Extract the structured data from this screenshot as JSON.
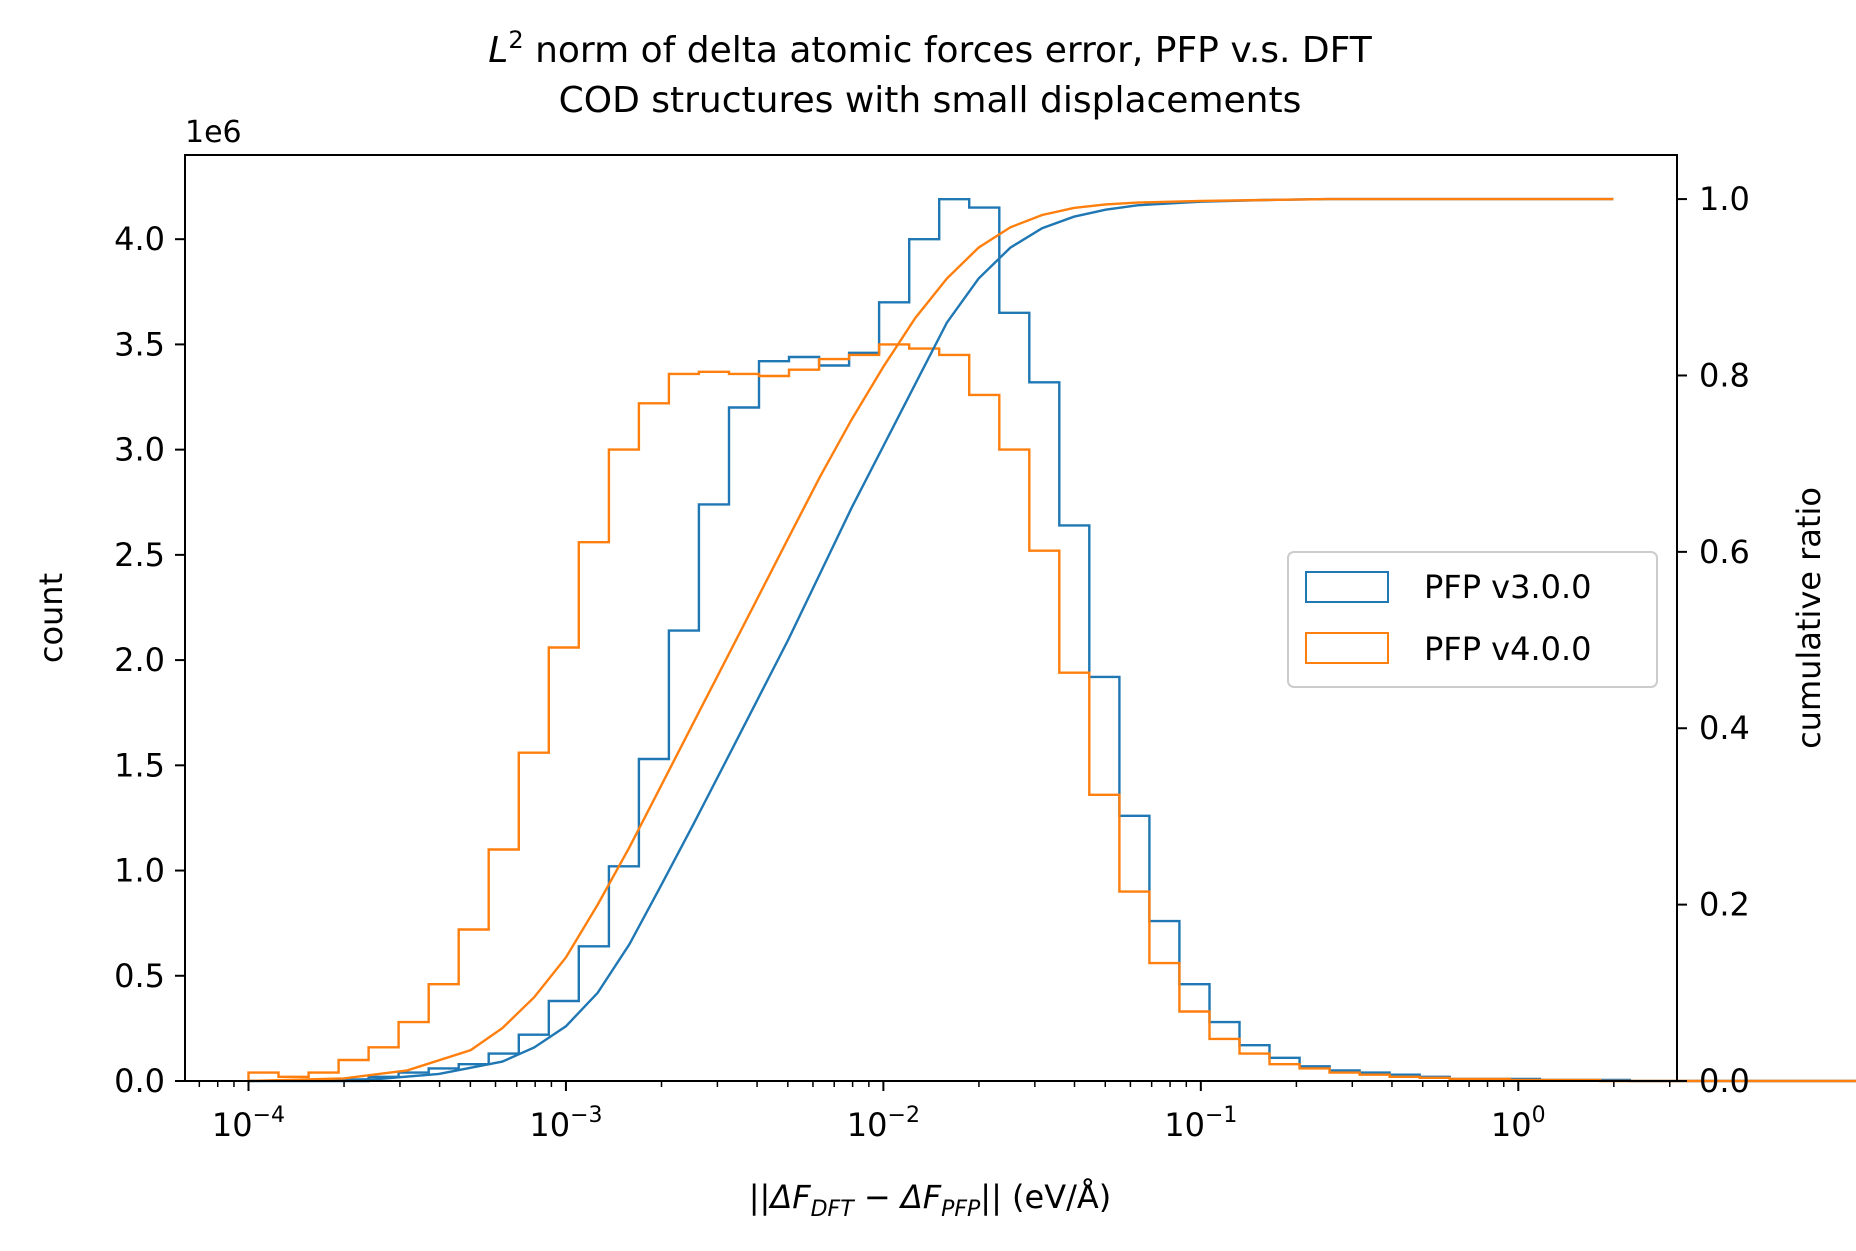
{
  "chart_data": {
    "type": "histogram",
    "title": {
      "line1_prefix": "L",
      "line1_sup": "2",
      "line1_rest": " norm of delta atomic forces error, PFP v.s. DFT",
      "line2": "COD structures with small displacements"
    },
    "xlabel": {
      "open": "||",
      "delta1": "ΔF",
      "sub1": "DFT",
      "minus": " − ",
      "delta2": "ΔF",
      "sub2": "PFP",
      "close": "||",
      "unit": " (eV/Å)"
    },
    "ylabel": "count",
    "y2label": "cumulative ratio",
    "y_scale_label": "1e6",
    "xscale": "log",
    "xlim_exp": [
      -4.2,
      0.5
    ],
    "ylim": [
      0,
      4.4
    ],
    "y2lim": [
      0,
      1.05
    ],
    "x_ticks": [
      {
        "base": "10",
        "exp": "−4",
        "e": -4
      },
      {
        "base": "10",
        "exp": "−3",
        "e": -3
      },
      {
        "base": "10",
        "exp": "−2",
        "e": -2
      },
      {
        "base": "10",
        "exp": "−1",
        "e": -1
      },
      {
        "base": "10",
        "exp": "0",
        "e": 0
      }
    ],
    "y_ticks": [
      "0.0",
      "0.5",
      "1.0",
      "1.5",
      "2.0",
      "2.5",
      "3.0",
      "3.5",
      "4.0"
    ],
    "y2_ticks": [
      "0.0",
      "0.2",
      "0.4",
      "0.6",
      "0.8",
      "1.0"
    ],
    "bin_start_exp": -4,
    "bin_width_exp": 0.0946,
    "series": [
      {
        "name": "PFP v3.0.0",
        "color": "#1f77b4",
        "counts_1e6": [
          0.0,
          0.0,
          0.0,
          0.0,
          0.02,
          0.04,
          0.06,
          0.08,
          0.13,
          0.22,
          0.38,
          0.64,
          1.02,
          1.53,
          2.14,
          2.74,
          3.2,
          3.42,
          3.44,
          3.4,
          3.46,
          3.7,
          4.0,
          4.19,
          4.15,
          3.65,
          3.32,
          2.64,
          1.92,
          1.26,
          0.76,
          0.46,
          0.28,
          0.17,
          0.11,
          0.07,
          0.05,
          0.04,
          0.03,
          0.02,
          0.01,
          0.01,
          0.01,
          0.005,
          0.005,
          0.005,
          0.0,
          0.0,
          0.0,
          0.0,
          0.0,
          0.0,
          0.0,
          0.0,
          0.0
        ],
        "cdf_x_exp": [
          -4.0,
          -3.6,
          -3.4,
          -3.2,
          -3.1,
          -3.0,
          -2.9,
          -2.8,
          -2.7,
          -2.6,
          -2.5,
          -2.4,
          -2.3,
          -2.2,
          -2.1,
          -2.0,
          -1.9,
          -1.8,
          -1.7,
          -1.6,
          -1.5,
          -1.4,
          -1.3,
          -1.2,
          -1.0,
          -0.8,
          -0.6,
          -0.4,
          -0.2,
          0.0,
          0.3
        ],
        "cdf_y": [
          0.0,
          0.002,
          0.008,
          0.022,
          0.038,
          0.062,
          0.1,
          0.155,
          0.222,
          0.29,
          0.36,
          0.43,
          0.5,
          0.575,
          0.65,
          0.72,
          0.79,
          0.86,
          0.91,
          0.945,
          0.967,
          0.98,
          0.988,
          0.993,
          0.997,
          0.999,
          1.0,
          1.0,
          1.0,
          1.0,
          1.0
        ]
      },
      {
        "name": "PFP v4.0.0",
        "color": "#ff7f0e",
        "counts_1e6": [
          0.04,
          0.02,
          0.04,
          0.1,
          0.16,
          0.28,
          0.46,
          0.72,
          1.1,
          1.56,
          2.06,
          2.56,
          3.0,
          3.22,
          3.36,
          3.37,
          3.36,
          3.35,
          3.38,
          3.43,
          3.45,
          3.5,
          3.48,
          3.45,
          3.26,
          3.0,
          2.52,
          1.94,
          1.36,
          0.9,
          0.56,
          0.33,
          0.2,
          0.13,
          0.08,
          0.06,
          0.04,
          0.03,
          0.02,
          0.015,
          0.01,
          0.01,
          0.005,
          0.005,
          0.005,
          0.0,
          0.0,
          0.0,
          0.0,
          0.0,
          0.0,
          0.0,
          0.0,
          0.0,
          0.0
        ],
        "cdf_x_exp": [
          -4.0,
          -3.7,
          -3.5,
          -3.3,
          -3.2,
          -3.1,
          -3.0,
          -2.9,
          -2.8,
          -2.7,
          -2.6,
          -2.5,
          -2.4,
          -2.3,
          -2.2,
          -2.1,
          -2.0,
          -1.9,
          -1.8,
          -1.7,
          -1.6,
          -1.5,
          -1.4,
          -1.3,
          -1.2,
          -1.0,
          -0.8,
          -0.6,
          -0.4,
          -0.2,
          0.0,
          0.3
        ],
        "cdf_y": [
          0.0,
          0.003,
          0.012,
          0.035,
          0.06,
          0.095,
          0.14,
          0.2,
          0.265,
          0.335,
          0.405,
          0.475,
          0.545,
          0.615,
          0.685,
          0.75,
          0.81,
          0.865,
          0.91,
          0.945,
          0.968,
          0.982,
          0.99,
          0.994,
          0.996,
          0.998,
          0.999,
          1.0,
          1.0,
          1.0,
          1.0,
          1.0
        ]
      }
    ],
    "legend_position": "center-right"
  }
}
